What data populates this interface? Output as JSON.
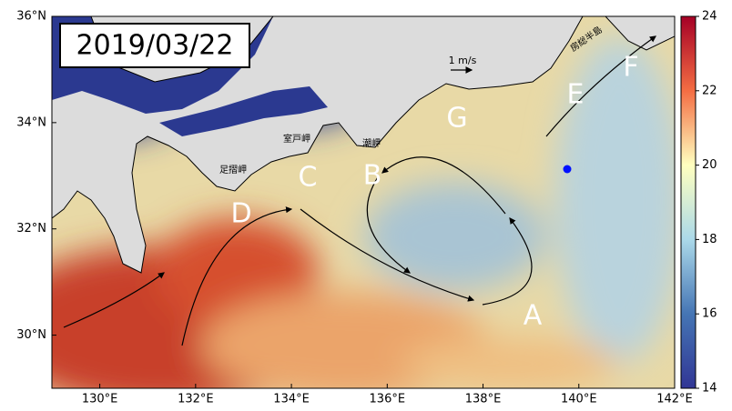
{
  "map": {
    "date": "2019/03/22",
    "xlim": [
      129,
      142
    ],
    "ylim": [
      29,
      36
    ],
    "xticks": [
      {
        "value": 130,
        "label": "130°E"
      },
      {
        "value": 132,
        "label": "132°E"
      },
      {
        "value": 134,
        "label": "134°E"
      },
      {
        "value": 136,
        "label": "136°E"
      },
      {
        "value": 138,
        "label": "138°E"
      },
      {
        "value": 140,
        "label": "140°E"
      },
      {
        "value": 142,
        "label": "142°E"
      }
    ],
    "yticks": [
      {
        "value": 30,
        "label": "30°N"
      },
      {
        "value": 32,
        "label": "32°N"
      },
      {
        "value": 34,
        "label": "34°N"
      },
      {
        "value": 36,
        "label": "36°N"
      }
    ],
    "colorbar": {
      "lim": [
        14,
        24
      ],
      "ticks": [
        14,
        16,
        18,
        20,
        22,
        24
      ]
    },
    "scale_label": "1 m/s",
    "region_labels": [
      "A",
      "B",
      "C",
      "D",
      "E",
      "F",
      "G"
    ],
    "place_names": [
      "足摺岬",
      "室戸岬",
      "潮岬",
      "房総半島"
    ]
  }
}
